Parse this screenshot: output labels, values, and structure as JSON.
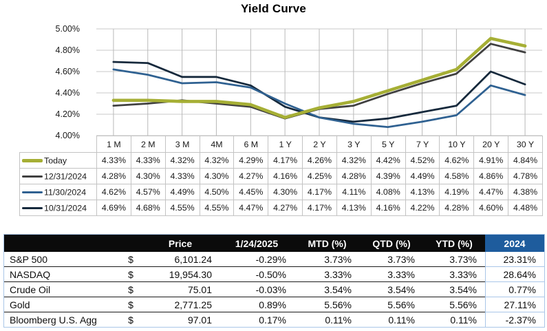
{
  "title": "Yield Curve",
  "colors": {
    "grid_h": "#c9c9c9",
    "grid_v": "#b9b9b9",
    "axis_text": "#1a1a1a",
    "yield_table_border": "#c3c3c3",
    "market_header_bg": "#0b0b0b",
    "market_header_fg": "#ffffff",
    "market_2024_header_bg": "#1e5c9d",
    "market_accent_border": "#a9c6e8",
    "market_row_divider": "#1b1b1b"
  },
  "chart_data": {
    "type": "line",
    "title": "Yield Curve",
    "categories": [
      "1 M",
      "2 M",
      "3 M",
      "4M",
      "6 M",
      "1 Y",
      "2 Y",
      "3 Y",
      "5 Y",
      "7 Y",
      "10 Y",
      "20 Y",
      "30 Y"
    ],
    "series": [
      {
        "name": "Today",
        "color": "#a6af35",
        "stroke_width": 4.6,
        "values": [
          4.33,
          4.33,
          4.32,
          4.32,
          4.29,
          4.17,
          4.26,
          4.32,
          4.42,
          4.52,
          4.62,
          4.91,
          4.84
        ]
      },
      {
        "name": "12/31/2024",
        "color": "#404040",
        "stroke_width": 2.8,
        "values": [
          4.28,
          4.3,
          4.33,
          4.3,
          4.27,
          4.16,
          4.25,
          4.28,
          4.39,
          4.49,
          4.58,
          4.86,
          4.78
        ]
      },
      {
        "name": "11/30/2024",
        "color": "#2f6191",
        "stroke_width": 2.8,
        "values": [
          4.62,
          4.57,
          4.49,
          4.5,
          4.45,
          4.3,
          4.17,
          4.11,
          4.08,
          4.13,
          4.19,
          4.47,
          4.38
        ]
      },
      {
        "name": "10/31/2024",
        "color": "#16293c",
        "stroke_width": 2.8,
        "values": [
          4.69,
          4.68,
          4.55,
          4.55,
          4.47,
          4.27,
          4.17,
          4.13,
          4.16,
          4.22,
          4.28,
          4.6,
          4.48
        ]
      }
    ],
    "y_ticks": [
      "5.00%",
      "4.80%",
      "4.60%",
      "4.40%",
      "4.20%",
      "4.00%"
    ],
    "ylim": [
      4.0,
      5.0
    ],
    "grid": true,
    "legend_position": "table-left",
    "value_suffix": "%"
  },
  "market_table": {
    "headers": [
      "",
      "",
      "Price",
      "1/24/2025",
      "MTD (%)",
      "QTD (%)",
      "YTD (%)",
      "2024"
    ],
    "rows": [
      [
        "S&P 500",
        "$",
        "6,101.24",
        "-0.29%",
        "3.73%",
        "3.73%",
        "3.73%",
        "23.31%"
      ],
      [
        "NASDAQ",
        "$",
        "19,954.30",
        "-0.50%",
        "3.33%",
        "3.33%",
        "3.33%",
        "28.64%"
      ],
      [
        "Crude Oil",
        "$",
        "75.01",
        "-0.03%",
        "3.54%",
        "3.54%",
        "3.54%",
        "0.77%"
      ],
      [
        "Gold",
        "$",
        "2,771.25",
        "0.89%",
        "5.56%",
        "5.56%",
        "5.56%",
        "27.11%"
      ],
      [
        "Bloomberg U.S. Agg",
        "$",
        "97.01",
        "0.17%",
        "0.11%",
        "0.11%",
        "0.11%",
        "-2.37%"
      ]
    ]
  }
}
